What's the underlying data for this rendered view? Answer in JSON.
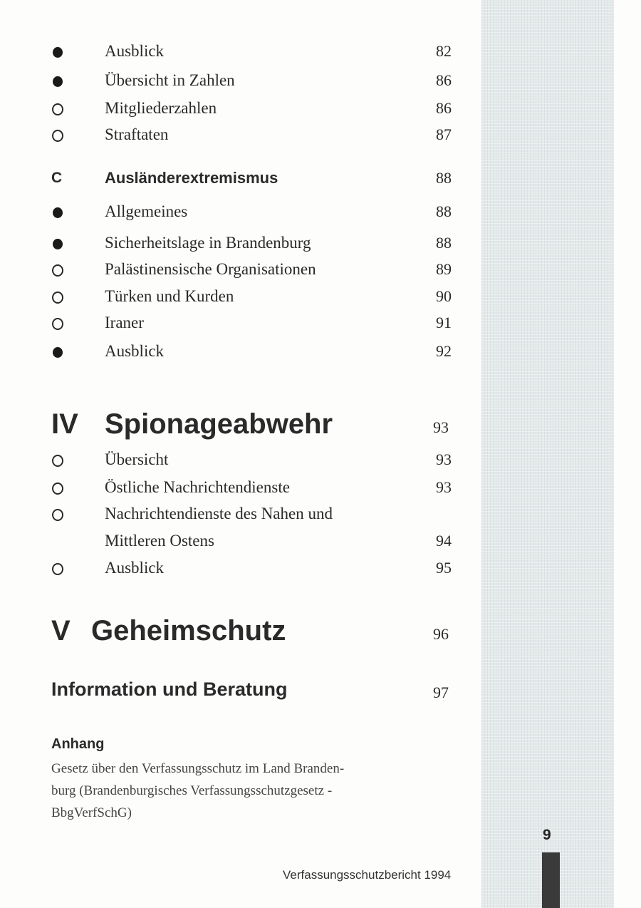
{
  "entries_top": [
    {
      "bullet": "filled",
      "label": "Ausblick",
      "page": "82"
    },
    {
      "bullet": "filled",
      "label": "Übersicht in Zahlen",
      "page": "86"
    },
    {
      "bullet": "open",
      "label": "Mitgliederzahlen",
      "page": "86"
    },
    {
      "bullet": "open",
      "label": "Straftaten",
      "page": "87"
    }
  ],
  "section_c": {
    "letter": "C",
    "title": "Ausländerextremismus",
    "page": "88"
  },
  "entries_c": [
    {
      "bullet": "filled",
      "label": "Allgemeines",
      "page": "88"
    },
    {
      "bullet": "filled",
      "label": "Sicherheitslage in Brandenburg",
      "page": "88"
    },
    {
      "bullet": "open",
      "label": "Palästinensische Organisationen",
      "page": "89"
    },
    {
      "bullet": "open",
      "label": "Türken und Kurden",
      "page": "90"
    },
    {
      "bullet": "open",
      "label": "Iraner",
      "page": "91"
    },
    {
      "bullet": "filled",
      "label": "Ausblick",
      "page": "92"
    }
  ],
  "chapter_iv": {
    "numeral": "IV",
    "title": "Spionageabwehr",
    "page": "93"
  },
  "entries_iv": [
    {
      "bullet": "open",
      "label": "Übersicht",
      "page": "93"
    },
    {
      "bullet": "open",
      "label": "Östliche Nachrichtendienste",
      "page": "93"
    },
    {
      "bullet": "open",
      "label": "Nachrichtendienste des Nahen und",
      "page": ""
    },
    {
      "bullet": "",
      "label": "Mittleren Ostens",
      "page": "94"
    },
    {
      "bullet": "open",
      "label": "Ausblick",
      "page": "95"
    }
  ],
  "chapter_v": {
    "numeral": "V",
    "title": "Geheimschutz",
    "page": "96"
  },
  "info": {
    "title": "Information und Beratung",
    "page": "97"
  },
  "anhang": {
    "title": "Anhang",
    "lines": [
      "Gesetz über den Verfassungsschutz im Land Branden-",
      "burg (Brandenburgisches Verfassungsschutzgesetz -",
      "BbgVerfSchG)"
    ]
  },
  "footer": "Verfassungsschutzbericht 1994",
  "page_number": "9"
}
